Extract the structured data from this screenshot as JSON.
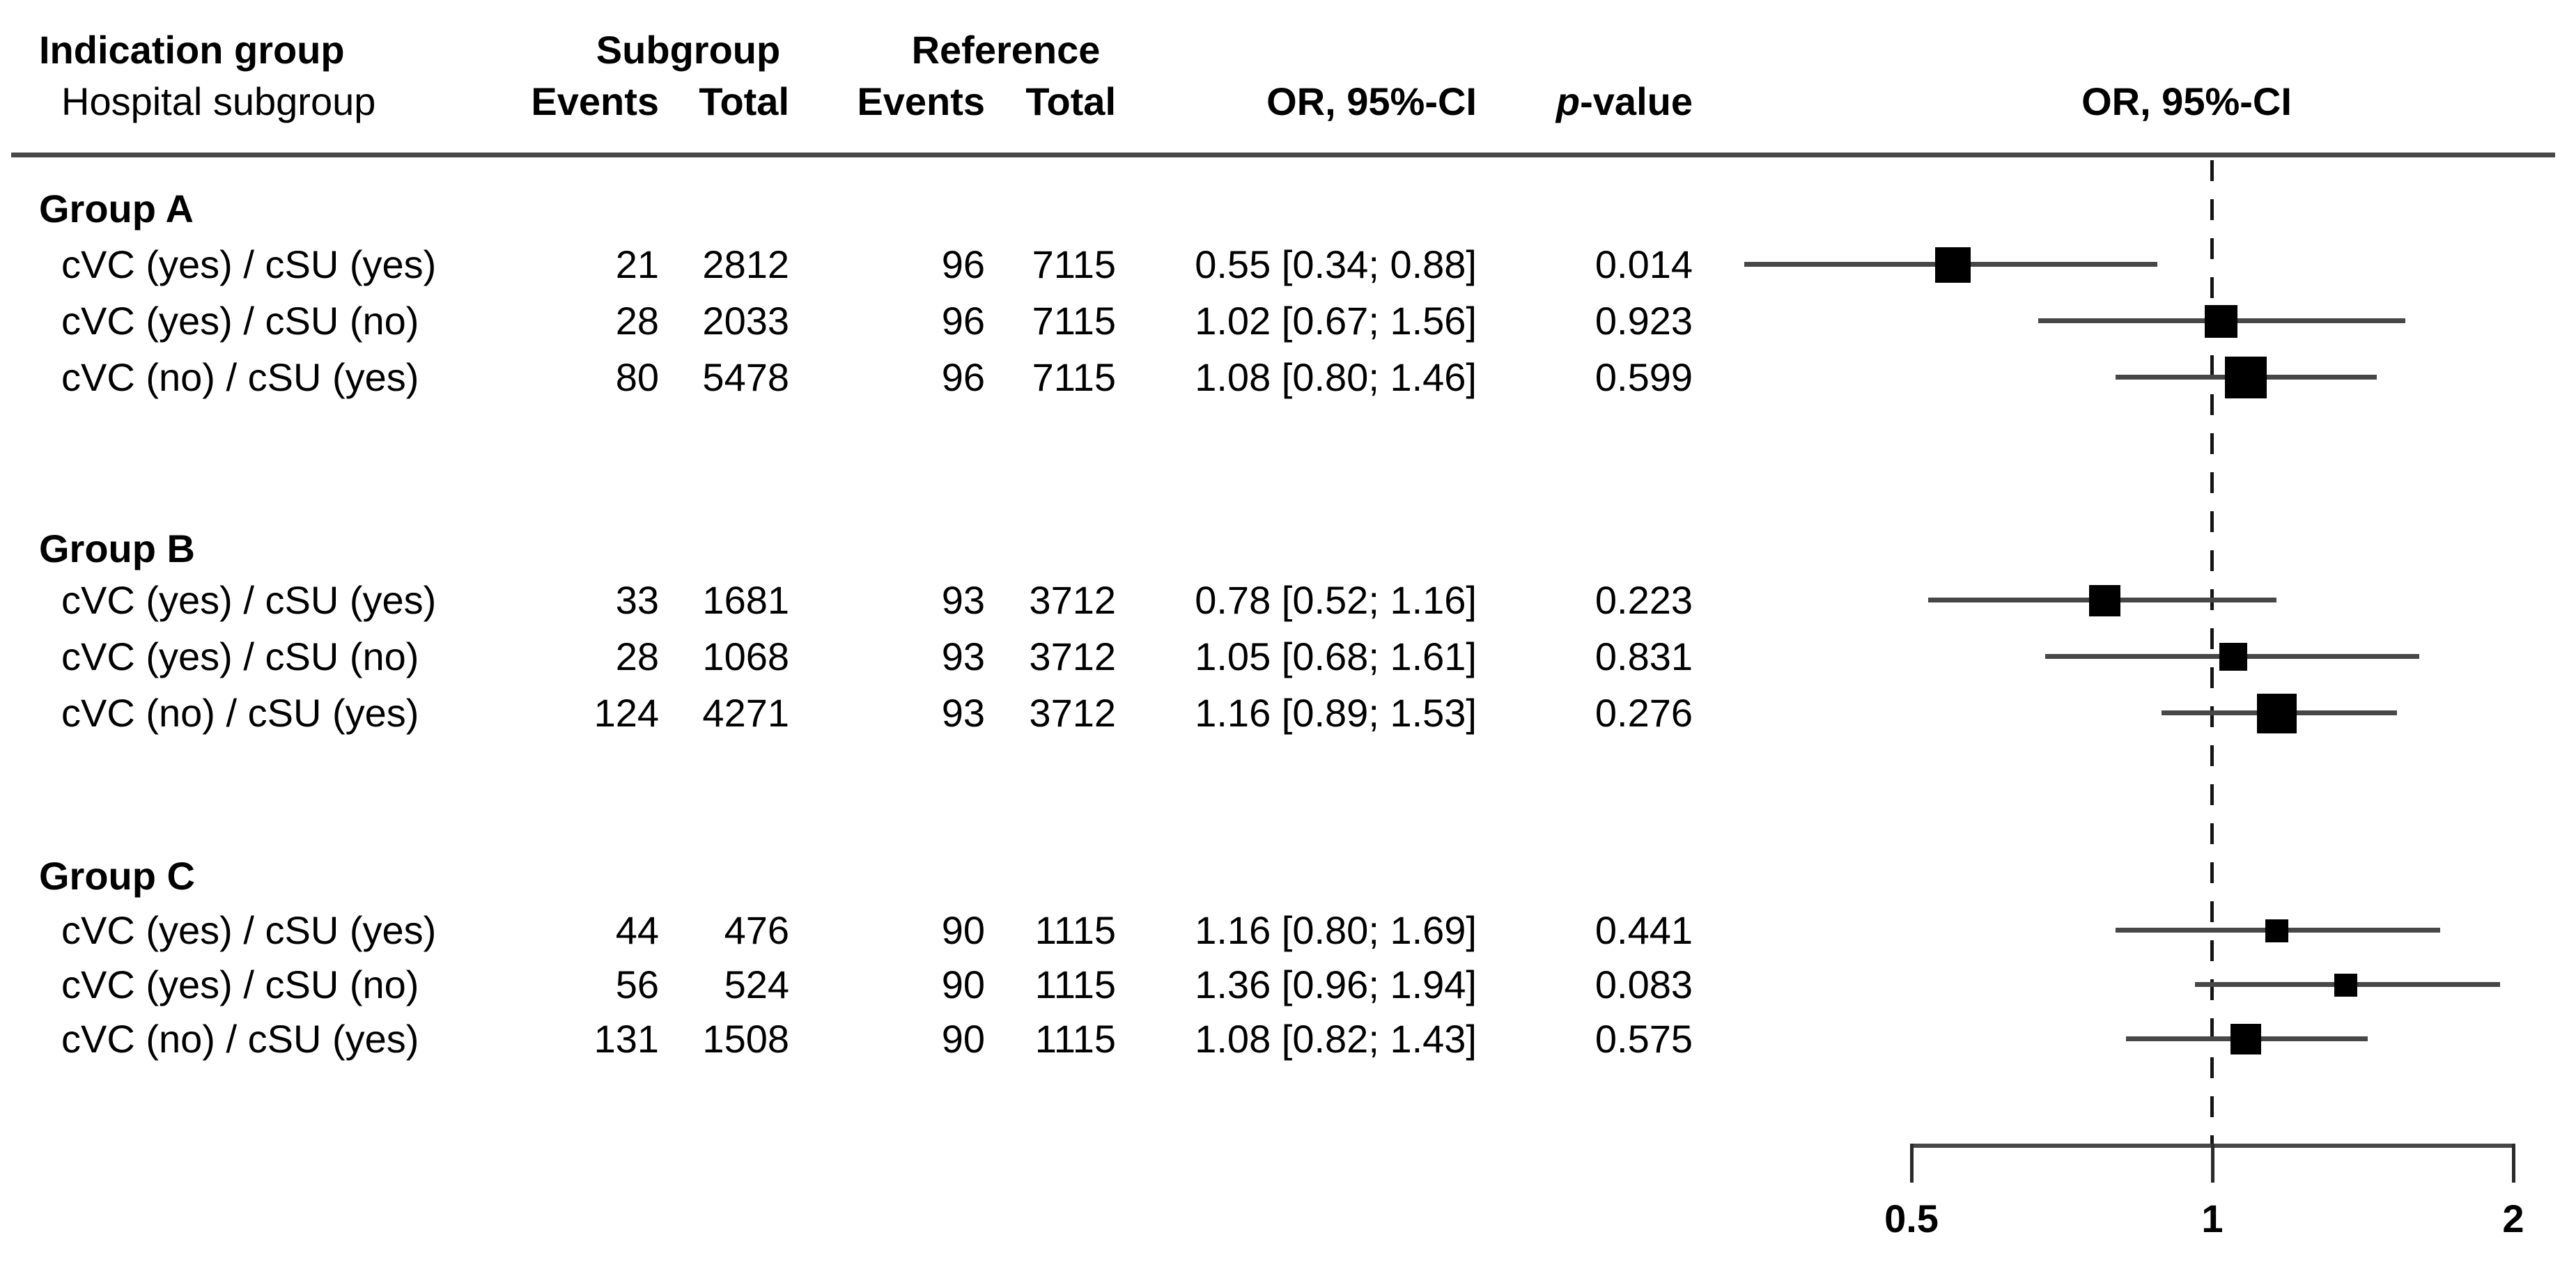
{
  "header": {
    "col_group_line1": "Indication group",
    "col_group_line2": "Hospital subgroup",
    "subgroup_label": "Subgroup",
    "reference_label": "Reference",
    "events_label": "Events",
    "total_label": "Total",
    "or_ci_label": "OR, 95%-CI",
    "p_label_italic": "p",
    "p_label_rest": "-value",
    "plot_or_ci_label": "OR, 95%-CI"
  },
  "colors": {
    "background": "#ffffff",
    "text": "#000000",
    "line_gray": "#474747",
    "marker": "#000000",
    "reference_dash": "#151515"
  },
  "chart_data": {
    "type": "forest",
    "x_axis": {
      "scale": "log",
      "ticks": [
        0.5,
        1,
        2
      ],
      "tick_labels": [
        "0.5",
        "1",
        "2"
      ],
      "reference_line": 1,
      "xlim": [
        0.31,
        2.05
      ]
    },
    "groups": [
      {
        "name": "Group A",
        "rows": [
          {
            "label": "cVC (yes) / cSU (yes)",
            "events": 21,
            "total": 2812,
            "ref_events": 96,
            "ref_total": 7115,
            "or": 0.55,
            "ci_low": 0.34,
            "ci_high": 0.88,
            "or_ci_text": "0.55 [0.34; 0.88]",
            "p": "0.014"
          },
          {
            "label": "cVC (yes) / cSU (no)",
            "events": 28,
            "total": 2033,
            "ref_events": 96,
            "ref_total": 7115,
            "or": 1.02,
            "ci_low": 0.67,
            "ci_high": 1.56,
            "or_ci_text": "1.02 [0.67; 1.56]",
            "p": "0.923"
          },
          {
            "label": "cVC (no) / cSU (yes)",
            "events": 80,
            "total": 5478,
            "ref_events": 96,
            "ref_total": 7115,
            "or": 1.08,
            "ci_low": 0.8,
            "ci_high": 1.46,
            "or_ci_text": "1.08 [0.80; 1.46]",
            "p": "0.599"
          }
        ]
      },
      {
        "name": "Group B",
        "rows": [
          {
            "label": "cVC (yes) / cSU (yes)",
            "events": 33,
            "total": 1681,
            "ref_events": 93,
            "ref_total": 3712,
            "or": 0.78,
            "ci_low": 0.52,
            "ci_high": 1.16,
            "or_ci_text": "0.78 [0.52; 1.16]",
            "p": "0.223"
          },
          {
            "label": "cVC (yes) / cSU (no)",
            "events": 28,
            "total": 1068,
            "ref_events": 93,
            "ref_total": 3712,
            "or": 1.05,
            "ci_low": 0.68,
            "ci_high": 1.61,
            "or_ci_text": "1.05 [0.68; 1.61]",
            "p": "0.831"
          },
          {
            "label": "cVC (no) / cSU (yes)",
            "events": 124,
            "total": 4271,
            "ref_events": 93,
            "ref_total": 3712,
            "or": 1.16,
            "ci_low": 0.89,
            "ci_high": 1.53,
            "or_ci_text": "1.16 [0.89; 1.53]",
            "p": "0.276"
          }
        ]
      },
      {
        "name": "Group C",
        "rows": [
          {
            "label": "cVC (yes) / cSU (yes)",
            "events": 44,
            "total": 476,
            "ref_events": 90,
            "ref_total": 1115,
            "or": 1.16,
            "ci_low": 0.8,
            "ci_high": 1.69,
            "or_ci_text": "1.16 [0.80; 1.69]",
            "p": "0.441"
          },
          {
            "label": "cVC (yes) / cSU (no)",
            "events": 56,
            "total": 524,
            "ref_events": 90,
            "ref_total": 1115,
            "or": 1.36,
            "ci_low": 0.96,
            "ci_high": 1.94,
            "or_ci_text": "1.36 [0.96; 1.94]",
            "p": "0.083"
          },
          {
            "label": "cVC (no) / cSU (yes)",
            "events": 131,
            "total": 1508,
            "ref_events": 90,
            "ref_total": 1115,
            "or": 1.08,
            "ci_low": 0.82,
            "ci_high": 1.43,
            "or_ci_text": "1.08 [0.82; 1.43]",
            "p": "0.575"
          }
        ]
      }
    ]
  }
}
